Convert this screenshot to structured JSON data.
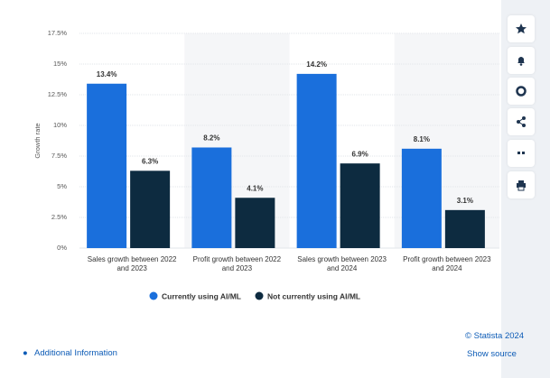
{
  "chart_data": {
    "type": "bar",
    "y_label": "Growth rate",
    "categories": [
      "Sales growth between 2022 and 2023",
      "Profit growth between 2022 and 2023",
      "Sales growth between 2023 and 2024",
      "Profit growth between 2023 and 2024"
    ],
    "series": [
      {
        "name": "Currently using AI/ML",
        "color": "#1a6fdc",
        "values": [
          13.4,
          8.2,
          14.2,
          8.1
        ],
        "value_labels": [
          "13.4%",
          "8.2%",
          "14.2%",
          "8.1%"
        ]
      },
      {
        "name": "Not currently using AI/ML",
        "color": "#0d2b40",
        "values": [
          6.3,
          4.1,
          6.9,
          3.1
        ],
        "value_labels": [
          "6.3%",
          "4.1%",
          "6.9%",
          "3.1%"
        ]
      }
    ],
    "ylim": [
      0,
      17.5
    ],
    "yticks": [
      {
        "value": 0,
        "label": "0%"
      },
      {
        "value": 2.5,
        "label": "2.5%"
      },
      {
        "value": 5,
        "label": "5%"
      },
      {
        "value": 7.5,
        "label": "7.5%"
      },
      {
        "value": 10,
        "label": "10%"
      },
      {
        "value": 12.5,
        "label": "12.5%"
      },
      {
        "value": 15,
        "label": "15%"
      },
      {
        "value": 17.5,
        "label": "17.5%"
      }
    ],
    "grid": true,
    "legend": "bottom"
  },
  "footer": {
    "credit": "© Statista 2024",
    "source_link": "Show source",
    "info_link": "Additional Information"
  }
}
